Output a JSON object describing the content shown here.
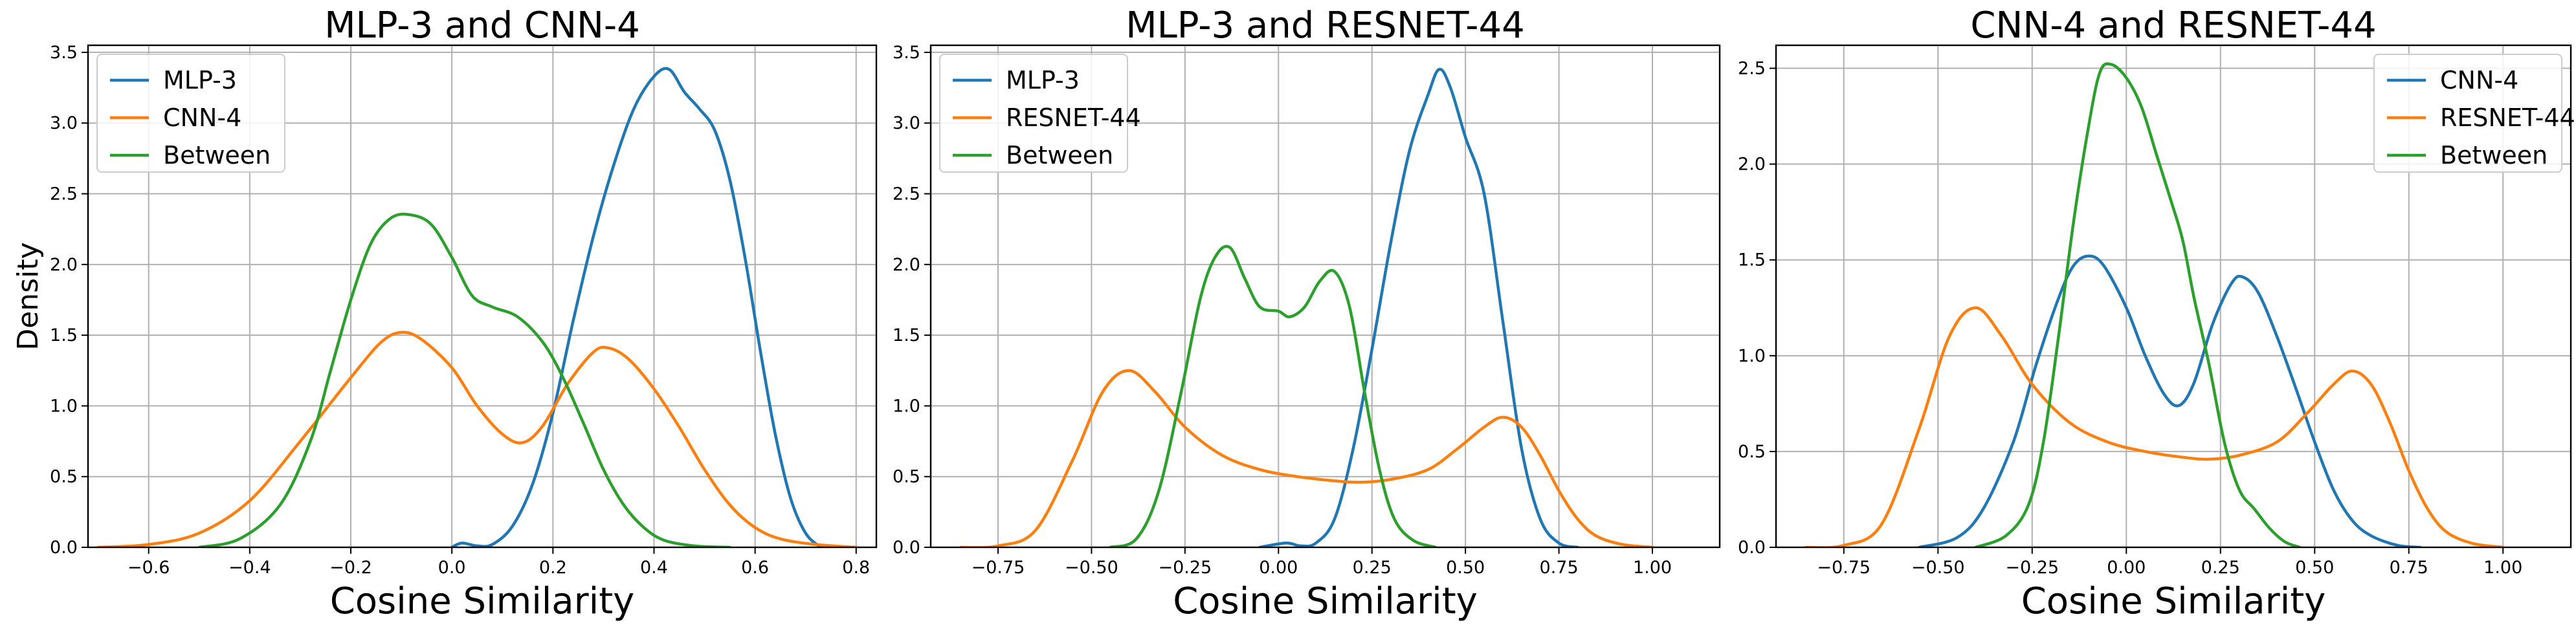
{
  "chart_data": [
    {
      "type": "line",
      "title": "MLP-3 and CNN-4",
      "xlabel": "Cosine Similarity",
      "ylabel": "Density",
      "xlim": [
        -0.72,
        0.84
      ],
      "ylim": [
        0,
        3.55
      ],
      "xticks": [
        -0.6,
        -0.4,
        -0.2,
        0.0,
        0.2,
        0.4,
        0.6,
        0.8
      ],
      "xtick_labels": [
        "−0.6",
        "−0.4",
        "−0.2",
        "0.0",
        "0.2",
        "0.4",
        "0.6",
        "0.8"
      ],
      "yticks": [
        0,
        0.5,
        1.0,
        1.5,
        2.0,
        2.5,
        3.0,
        3.5
      ],
      "ytick_labels": [
        "0.0",
        "0.5",
        "1.0",
        "1.5",
        "2.0",
        "2.5",
        "3.0",
        "3.5"
      ],
      "grid": true,
      "legend_position": "upper-left",
      "series": [
        {
          "name": "MLP-3",
          "color": "#1f77b4",
          "points": [
            [
              0.0,
              0.0
            ],
            [
              0.02,
              0.03
            ],
            [
              0.05,
              0.01
            ],
            [
              0.08,
              0.02
            ],
            [
              0.12,
              0.15
            ],
            [
              0.16,
              0.45
            ],
            [
              0.2,
              0.95
            ],
            [
              0.24,
              1.6
            ],
            [
              0.28,
              2.2
            ],
            [
              0.32,
              2.7
            ],
            [
              0.36,
              3.1
            ],
            [
              0.4,
              3.33
            ],
            [
              0.43,
              3.38
            ],
            [
              0.46,
              3.22
            ],
            [
              0.49,
              3.1
            ],
            [
              0.52,
              2.95
            ],
            [
              0.55,
              2.6
            ],
            [
              0.58,
              2.05
            ],
            [
              0.61,
              1.4
            ],
            [
              0.64,
              0.8
            ],
            [
              0.67,
              0.35
            ],
            [
              0.7,
              0.1
            ],
            [
              0.73,
              0.0
            ]
          ]
        },
        {
          "name": "CNN-4",
          "color": "#ff7f0e",
          "points": [
            [
              -0.7,
              0.0
            ],
            [
              -0.6,
              0.02
            ],
            [
              -0.5,
              0.1
            ],
            [
              -0.4,
              0.33
            ],
            [
              -0.3,
              0.75
            ],
            [
              -0.2,
              1.2
            ],
            [
              -0.14,
              1.45
            ],
            [
              -0.1,
              1.52
            ],
            [
              -0.06,
              1.47
            ],
            [
              0.0,
              1.27
            ],
            [
              0.05,
              1.0
            ],
            [
              0.1,
              0.8
            ],
            [
              0.14,
              0.74
            ],
            [
              0.18,
              0.86
            ],
            [
              0.23,
              1.16
            ],
            [
              0.28,
              1.38
            ],
            [
              0.31,
              1.41
            ],
            [
              0.35,
              1.33
            ],
            [
              0.4,
              1.12
            ],
            [
              0.45,
              0.85
            ],
            [
              0.5,
              0.55
            ],
            [
              0.55,
              0.3
            ],
            [
              0.6,
              0.14
            ],
            [
              0.65,
              0.06
            ],
            [
              0.72,
              0.02
            ],
            [
              0.8,
              0.0
            ]
          ]
        },
        {
          "name": "Between",
          "color": "#2ca02c",
          "points": [
            [
              -0.5,
              0.0
            ],
            [
              -0.42,
              0.06
            ],
            [
              -0.34,
              0.3
            ],
            [
              -0.28,
              0.75
            ],
            [
              -0.24,
              1.25
            ],
            [
              -0.2,
              1.75
            ],
            [
              -0.16,
              2.15
            ],
            [
              -0.12,
              2.33
            ],
            [
              -0.08,
              2.35
            ],
            [
              -0.04,
              2.28
            ],
            [
              0.0,
              2.05
            ],
            [
              0.04,
              1.78
            ],
            [
              0.08,
              1.7
            ],
            [
              0.13,
              1.63
            ],
            [
              0.18,
              1.45
            ],
            [
              0.22,
              1.2
            ],
            [
              0.26,
              0.88
            ],
            [
              0.3,
              0.55
            ],
            [
              0.34,
              0.3
            ],
            [
              0.38,
              0.14
            ],
            [
              0.42,
              0.05
            ],
            [
              0.48,
              0.01
            ],
            [
              0.55,
              0.0
            ]
          ]
        }
      ]
    },
    {
      "type": "line",
      "title": "MLP-3 and RESNET-44",
      "xlabel": "Cosine Similarity",
      "ylabel": "",
      "xlim": [
        -0.93,
        1.18
      ],
      "ylim": [
        0,
        3.55
      ],
      "xticks": [
        -0.75,
        -0.5,
        -0.25,
        0.0,
        0.25,
        0.5,
        0.75,
        1.0
      ],
      "xtick_labels": [
        "−0.75",
        "−0.50",
        "−0.25",
        "0.00",
        "0.25",
        "0.50",
        "0.75",
        "1.00"
      ],
      "yticks": [
        0,
        0.5,
        1.0,
        1.5,
        2.0,
        2.5,
        3.0,
        3.5
      ],
      "ytick_labels": [
        "0.0",
        "0.5",
        "1.0",
        "1.5",
        "2.0",
        "2.5",
        "3.0",
        "3.5"
      ],
      "grid": true,
      "legend_position": "upper-left",
      "series": [
        {
          "name": "MLP-3",
          "color": "#1f77b4",
          "points": [
            [
              -0.05,
              0.0
            ],
            [
              0.02,
              0.03
            ],
            [
              0.06,
              0.01
            ],
            [
              0.1,
              0.03
            ],
            [
              0.15,
              0.2
            ],
            [
              0.2,
              0.7
            ],
            [
              0.25,
              1.4
            ],
            [
              0.3,
              2.15
            ],
            [
              0.35,
              2.8
            ],
            [
              0.4,
              3.2
            ],
            [
              0.43,
              3.38
            ],
            [
              0.46,
              3.25
            ],
            [
              0.5,
              2.9
            ],
            [
              0.55,
              2.5
            ],
            [
              0.6,
              1.6
            ],
            [
              0.65,
              0.7
            ],
            [
              0.7,
              0.2
            ],
            [
              0.75,
              0.03
            ],
            [
              0.8,
              0.0
            ]
          ]
        },
        {
          "name": "RESNET-44",
          "color": "#ff7f0e",
          "points": [
            [
              -0.85,
              0.0
            ],
            [
              -0.75,
              0.01
            ],
            [
              -0.65,
              0.12
            ],
            [
              -0.55,
              0.62
            ],
            [
              -0.47,
              1.1
            ],
            [
              -0.4,
              1.25
            ],
            [
              -0.33,
              1.1
            ],
            [
              -0.25,
              0.85
            ],
            [
              -0.15,
              0.65
            ],
            [
              -0.05,
              0.55
            ],
            [
              0.05,
              0.5
            ],
            [
              0.15,
              0.47
            ],
            [
              0.22,
              0.46
            ],
            [
              0.3,
              0.48
            ],
            [
              0.4,
              0.55
            ],
            [
              0.48,
              0.7
            ],
            [
              0.55,
              0.85
            ],
            [
              0.6,
              0.92
            ],
            [
              0.65,
              0.85
            ],
            [
              0.7,
              0.65
            ],
            [
              0.75,
              0.4
            ],
            [
              0.8,
              0.2
            ],
            [
              0.85,
              0.08
            ],
            [
              0.92,
              0.02
            ],
            [
              1.0,
              0.0
            ]
          ]
        },
        {
          "name": "Between",
          "color": "#2ca02c",
          "points": [
            [
              -0.45,
              0.0
            ],
            [
              -0.38,
              0.06
            ],
            [
              -0.32,
              0.4
            ],
            [
              -0.26,
              1.1
            ],
            [
              -0.21,
              1.75
            ],
            [
              -0.17,
              2.05
            ],
            [
              -0.13,
              2.12
            ],
            [
              -0.09,
              1.9
            ],
            [
              -0.05,
              1.7
            ],
            [
              0.0,
              1.67
            ],
            [
              0.03,
              1.63
            ],
            [
              0.07,
              1.7
            ],
            [
              0.11,
              1.88
            ],
            [
              0.15,
              1.95
            ],
            [
              0.19,
              1.7
            ],
            [
              0.23,
              1.1
            ],
            [
              0.27,
              0.55
            ],
            [
              0.31,
              0.2
            ],
            [
              0.36,
              0.05
            ],
            [
              0.42,
              0.0
            ]
          ]
        }
      ]
    },
    {
      "type": "line",
      "title": "CNN-4 and RESNET-44",
      "xlabel": "Cosine Similarity",
      "ylabel": "",
      "xlim": [
        -0.93,
        1.18
      ],
      "ylim": [
        0,
        2.62
      ],
      "xticks": [
        -0.75,
        -0.5,
        -0.25,
        0.0,
        0.25,
        0.5,
        0.75,
        1.0
      ],
      "xtick_labels": [
        "−0.75",
        "−0.50",
        "−0.25",
        "0.00",
        "0.25",
        "0.50",
        "0.75",
        "1.00"
      ],
      "yticks": [
        0,
        0.5,
        1.0,
        1.5,
        2.0,
        2.5
      ],
      "ytick_labels": [
        "0.0",
        "0.5",
        "1.0",
        "1.5",
        "2.0",
        "2.5"
      ],
      "grid": true,
      "legend_position": "upper-right",
      "series": [
        {
          "name": "CNN-4",
          "color": "#1f77b4",
          "points": [
            [
              -0.55,
              0.0
            ],
            [
              -0.45,
              0.05
            ],
            [
              -0.38,
              0.2
            ],
            [
              -0.3,
              0.55
            ],
            [
              -0.24,
              0.95
            ],
            [
              -0.18,
              1.3
            ],
            [
              -0.14,
              1.47
            ],
            [
              -0.1,
              1.52
            ],
            [
              -0.06,
              1.47
            ],
            [
              0.0,
              1.25
            ],
            [
              0.05,
              1.0
            ],
            [
              0.1,
              0.8
            ],
            [
              0.14,
              0.74
            ],
            [
              0.18,
              0.86
            ],
            [
              0.23,
              1.17
            ],
            [
              0.28,
              1.38
            ],
            [
              0.31,
              1.41
            ],
            [
              0.35,
              1.33
            ],
            [
              0.4,
              1.1
            ],
            [
              0.45,
              0.83
            ],
            [
              0.5,
              0.55
            ],
            [
              0.55,
              0.3
            ],
            [
              0.6,
              0.14
            ],
            [
              0.65,
              0.06
            ],
            [
              0.72,
              0.01
            ],
            [
              0.78,
              0.0
            ]
          ]
        },
        {
          "name": "RESNET-44",
          "color": "#ff7f0e",
          "points": [
            [
              -0.85,
              0.0
            ],
            [
              -0.75,
              0.01
            ],
            [
              -0.65,
              0.12
            ],
            [
              -0.55,
              0.62
            ],
            [
              -0.47,
              1.1
            ],
            [
              -0.4,
              1.25
            ],
            [
              -0.33,
              1.1
            ],
            [
              -0.25,
              0.85
            ],
            [
              -0.15,
              0.65
            ],
            [
              -0.05,
              0.55
            ],
            [
              0.05,
              0.5
            ],
            [
              0.15,
              0.47
            ],
            [
              0.22,
              0.46
            ],
            [
              0.3,
              0.48
            ],
            [
              0.4,
              0.55
            ],
            [
              0.48,
              0.7
            ],
            [
              0.55,
              0.85
            ],
            [
              0.6,
              0.92
            ],
            [
              0.65,
              0.85
            ],
            [
              0.7,
              0.65
            ],
            [
              0.75,
              0.4
            ],
            [
              0.8,
              0.2
            ],
            [
              0.85,
              0.08
            ],
            [
              0.92,
              0.02
            ],
            [
              1.0,
              0.0
            ]
          ]
        },
        {
          "name": "Between",
          "color": "#2ca02c",
          "points": [
            [
              -0.4,
              0.0
            ],
            [
              -0.32,
              0.06
            ],
            [
              -0.26,
              0.22
            ],
            [
              -0.22,
              0.55
            ],
            [
              -0.18,
              1.1
            ],
            [
              -0.14,
              1.7
            ],
            [
              -0.1,
              2.2
            ],
            [
              -0.07,
              2.48
            ],
            [
              -0.04,
              2.52
            ],
            [
              0.0,
              2.45
            ],
            [
              0.04,
              2.3
            ],
            [
              0.08,
              2.05
            ],
            [
              0.12,
              1.8
            ],
            [
              0.15,
              1.6
            ],
            [
              0.18,
              1.3
            ],
            [
              0.22,
              0.95
            ],
            [
              0.26,
              0.55
            ],
            [
              0.3,
              0.3
            ],
            [
              0.34,
              0.2
            ],
            [
              0.38,
              0.1
            ],
            [
              0.42,
              0.03
            ],
            [
              0.46,
              0.0
            ]
          ]
        }
      ]
    }
  ]
}
